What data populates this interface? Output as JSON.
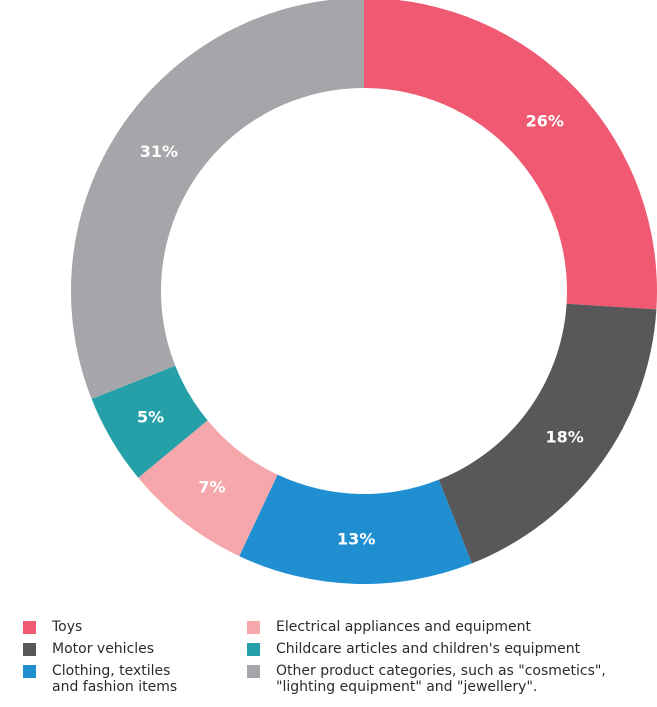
{
  "chart_data": {
    "type": "pie",
    "donut": true,
    "title": "",
    "unit": "%",
    "categories": [
      "Toys",
      "Motor vehicles",
      "Clothing, textiles\nand fashion items",
      "Electrical appliances and equipment",
      "Childcare articles and children's equipment",
      "Other product categories, such as \"cosmetics\",\n\"lighting equipment\" and \"jewellery\"."
    ],
    "values": [
      26,
      18,
      13,
      7,
      5,
      31
    ],
    "value_labels": [
      "26%",
      "18%",
      "13%",
      "7%",
      "5%",
      "31%"
    ],
    "colors": [
      "#ef5a72",
      "#58585a",
      "#1f8fd1",
      "#f6a7ab",
      "#26a0a8",
      "#a6a6aa"
    ],
    "start_angle_deg": 0,
    "direction": "clockwise",
    "legend_position": "bottom"
  },
  "legend": {
    "items": [
      {
        "label": "Toys",
        "color": "#ef5a72"
      },
      {
        "label": "Motor vehicles",
        "color": "#58585a"
      },
      {
        "label": "Clothing, textiles\nand fashion items",
        "color": "#1f8fd1"
      },
      {
        "label": "Electrical appliances and equipment",
        "color": "#f6a7ab"
      },
      {
        "label": "Childcare articles and children's equipment",
        "color": "#26a0a8"
      },
      {
        "label": "Other product categories, such as \"cosmetics\",\n\"lighting equipment\" and \"jewellery\".",
        "color": "#a6a6aa"
      }
    ]
  }
}
